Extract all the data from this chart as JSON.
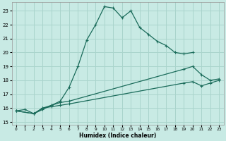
{
  "xlabel": "Humidex (Indice chaleur)",
  "xlim": [
    -0.5,
    23.5
  ],
  "ylim": [
    14.8,
    23.6
  ],
  "yticks": [
    15,
    16,
    17,
    18,
    19,
    20,
    21,
    22,
    23
  ],
  "xticks": [
    0,
    1,
    2,
    3,
    4,
    5,
    6,
    7,
    8,
    9,
    10,
    11,
    12,
    13,
    14,
    15,
    16,
    17,
    18,
    19,
    20,
    21,
    22,
    23
  ],
  "bg_color": "#c8eae4",
  "grid_color": "#aad4cc",
  "line_color": "#1a6b5a",
  "line1_x": [
    0,
    1,
    2,
    3,
    4,
    5,
    6,
    7,
    8,
    9,
    10,
    11,
    12,
    13,
    14,
    15,
    16,
    17,
    18,
    19,
    20
  ],
  "line1_y": [
    15.8,
    15.9,
    15.6,
    15.9,
    16.2,
    16.5,
    17.5,
    19.0,
    20.9,
    22.0,
    23.3,
    23.2,
    22.5,
    23.0,
    21.8,
    21.3,
    20.8,
    20.5,
    20.0,
    19.9,
    20.0
  ],
  "line2_x": [
    0,
    2,
    3,
    4,
    5,
    6,
    19,
    20,
    21,
    22,
    23
  ],
  "line2_y": [
    15.8,
    15.6,
    16.0,
    16.2,
    16.4,
    16.5,
    18.8,
    19.0,
    18.4,
    18.0,
    18.1
  ],
  "line3_x": [
    0,
    2,
    3,
    4,
    5,
    6,
    19,
    20,
    21,
    22,
    23
  ],
  "line3_y": [
    15.8,
    15.6,
    16.0,
    16.1,
    16.2,
    16.3,
    17.8,
    17.9,
    17.6,
    17.8,
    18.0
  ]
}
